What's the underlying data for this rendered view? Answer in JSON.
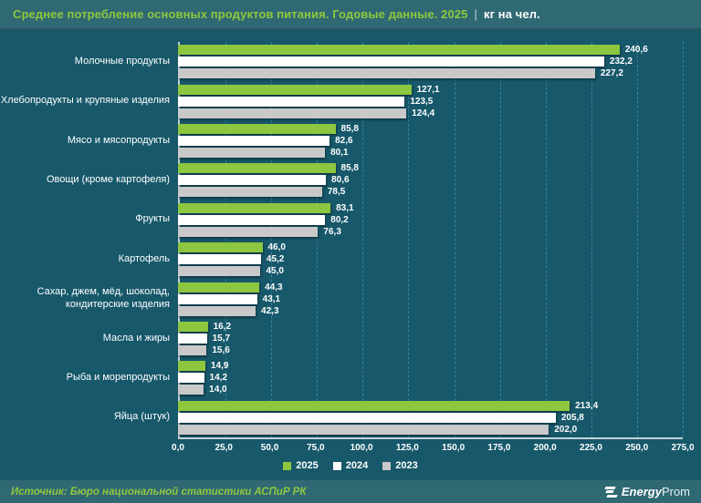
{
  "header": {
    "title_main": "Среднее потребление основных продуктов питания. Годовые данные. 2025",
    "title_sep": "|",
    "title_unit": "кг на чел."
  },
  "chart_data": {
    "type": "bar",
    "orientation": "horizontal",
    "title": "Среднее потребление основных продуктов питания. Годовые данные. 2025",
    "unit": "кг на чел.",
    "xlim": [
      0,
      275
    ],
    "xticks": [
      0,
      25,
      50,
      75,
      100,
      125,
      150,
      175,
      200,
      225,
      250,
      275
    ],
    "grid": "vertical-dashed",
    "legend_position": "bottom-center",
    "categories": [
      "Молочные продукты",
      "Хлебопродукты и крупяные изделия",
      "Мясо и мясопродукты",
      "Овощи (кроме картофеля)",
      "Фрукты",
      "Картофель",
      "Сахар, джем, мёд, шоколад, кондитерские изделия",
      "Масла и жиры",
      "Рыба и морепродукты",
      "Яйца (штук)"
    ],
    "series": [
      {
        "name": "2025",
        "color": "#8dc63f",
        "values": [
          240.6,
          127.1,
          85.8,
          85.8,
          83.1,
          46.0,
          44.3,
          16.2,
          14.9,
          213.4
        ]
      },
      {
        "name": "2024",
        "color": "#ffffff",
        "values": [
          232.2,
          123.5,
          82.6,
          80.6,
          80.2,
          45.2,
          43.1,
          15.7,
          14.2,
          205.8
        ]
      },
      {
        "name": "2023",
        "color": "#c9c9c9",
        "values": [
          227.2,
          124.4,
          80.1,
          78.5,
          76.3,
          45.0,
          42.3,
          15.6,
          14.0,
          202.0
        ]
      }
    ]
  },
  "footer": {
    "source": "Источник: Бюро национальной статистики АСПиР РК",
    "logo_energy": "Energy",
    "logo_prom": "Prom"
  }
}
